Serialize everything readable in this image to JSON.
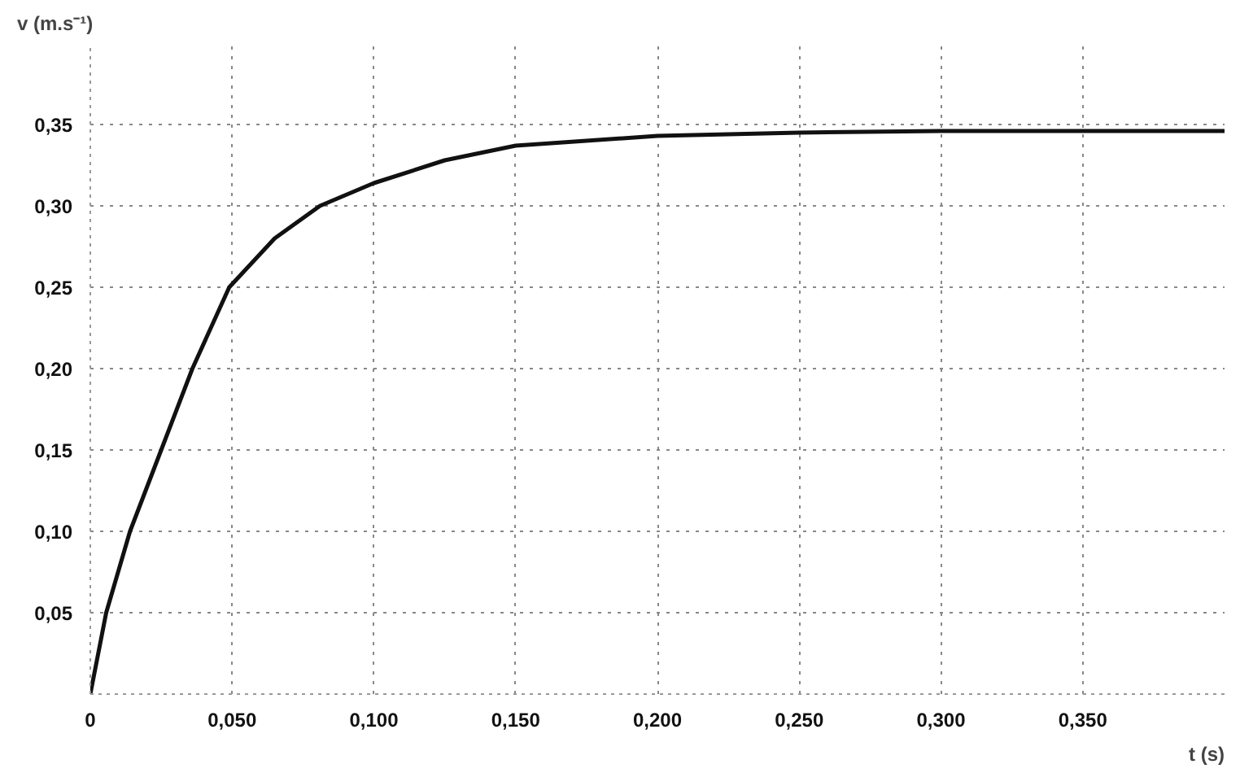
{
  "chart_data": {
    "type": "line",
    "xlabel": "t (s)",
    "ylabel": "v (m.s⁻¹)",
    "x": [
      0,
      0.0056,
      0.014,
      0.025,
      0.036,
      0.049,
      0.065,
      0.081,
      0.1,
      0.125,
      0.15,
      0.2,
      0.25,
      0.3,
      0.35,
      0.4
    ],
    "series": [
      {
        "color": "#111111",
        "values": [
          0,
          0.05,
          0.1,
          0.15,
          0.2,
          0.25,
          0.28,
          0.3,
          0.314,
          0.328,
          0.337,
          0.343,
          0.345,
          0.346,
          0.346,
          0.346
        ]
      }
    ],
    "xlim": [
      0,
      0.4
    ],
    "ylim": [
      0,
      0.4
    ],
    "xticks": [
      {
        "value": 0,
        "label": "0"
      },
      {
        "value": 0.05,
        "label": "0,050"
      },
      {
        "value": 0.1,
        "label": "0,100"
      },
      {
        "value": 0.15,
        "label": "0,150"
      },
      {
        "value": 0.2,
        "label": "0,200"
      },
      {
        "value": 0.25,
        "label": "0,250"
      },
      {
        "value": 0.3,
        "label": "0,300"
      },
      {
        "value": 0.35,
        "label": "0,350"
      }
    ],
    "yticks": [
      {
        "value": 0.05,
        "label": "0,05"
      },
      {
        "value": 0.1,
        "label": "0,10"
      },
      {
        "value": 0.15,
        "label": "0,15"
      },
      {
        "value": 0.2,
        "label": "0,20"
      },
      {
        "value": 0.25,
        "label": "0,25"
      },
      {
        "value": 0.3,
        "label": "0,30"
      },
      {
        "value": 0.35,
        "label": "0,35"
      }
    ],
    "grid": true,
    "marker": "none",
    "line_style": "solid"
  }
}
